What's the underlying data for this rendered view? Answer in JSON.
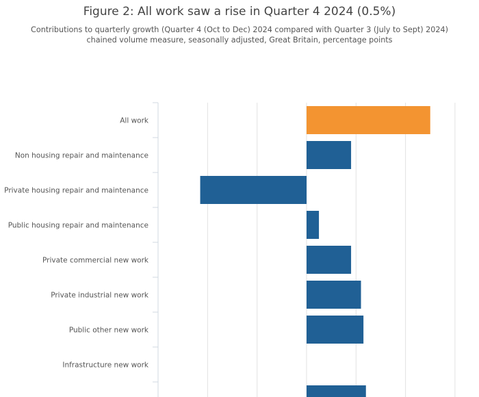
{
  "chart_data": {
    "type": "bar",
    "orientation": "horizontal",
    "title": "Figure 2: All work saw a rise in Quarter 4 2024 (0.5%)",
    "subtitle": [
      "Contributions to quarterly growth (Quarter 4 (Oct to Dec) 2024 compared with Quarter 3 (July to Sept) 2024)",
      "chained volume measure, seasonally adjusted, Great Britain, percentage points"
    ],
    "xlabel": "",
    "ylabel": "",
    "xlim": [
      -0.6,
      0.6
    ],
    "grid_step": 0.2,
    "grid": true,
    "categories": [
      "All work",
      "Non housing repair and maintenance",
      "Private housing repair and maintenance",
      "Public housing repair and maintenance",
      "Private commercial new work",
      "Private industrial new work",
      "Public other new work",
      "Infrastructure new work",
      ""
    ],
    "values": [
      0.5,
      0.18,
      -0.43,
      0.05,
      0.18,
      0.22,
      0.23,
      0.0,
      0.24
    ],
    "highlight_index": 0,
    "colors": {
      "highlight": "#f39431",
      "default": "#206095",
      "grid": "#e2e2e2",
      "axis": "#d0d8e2"
    }
  }
}
